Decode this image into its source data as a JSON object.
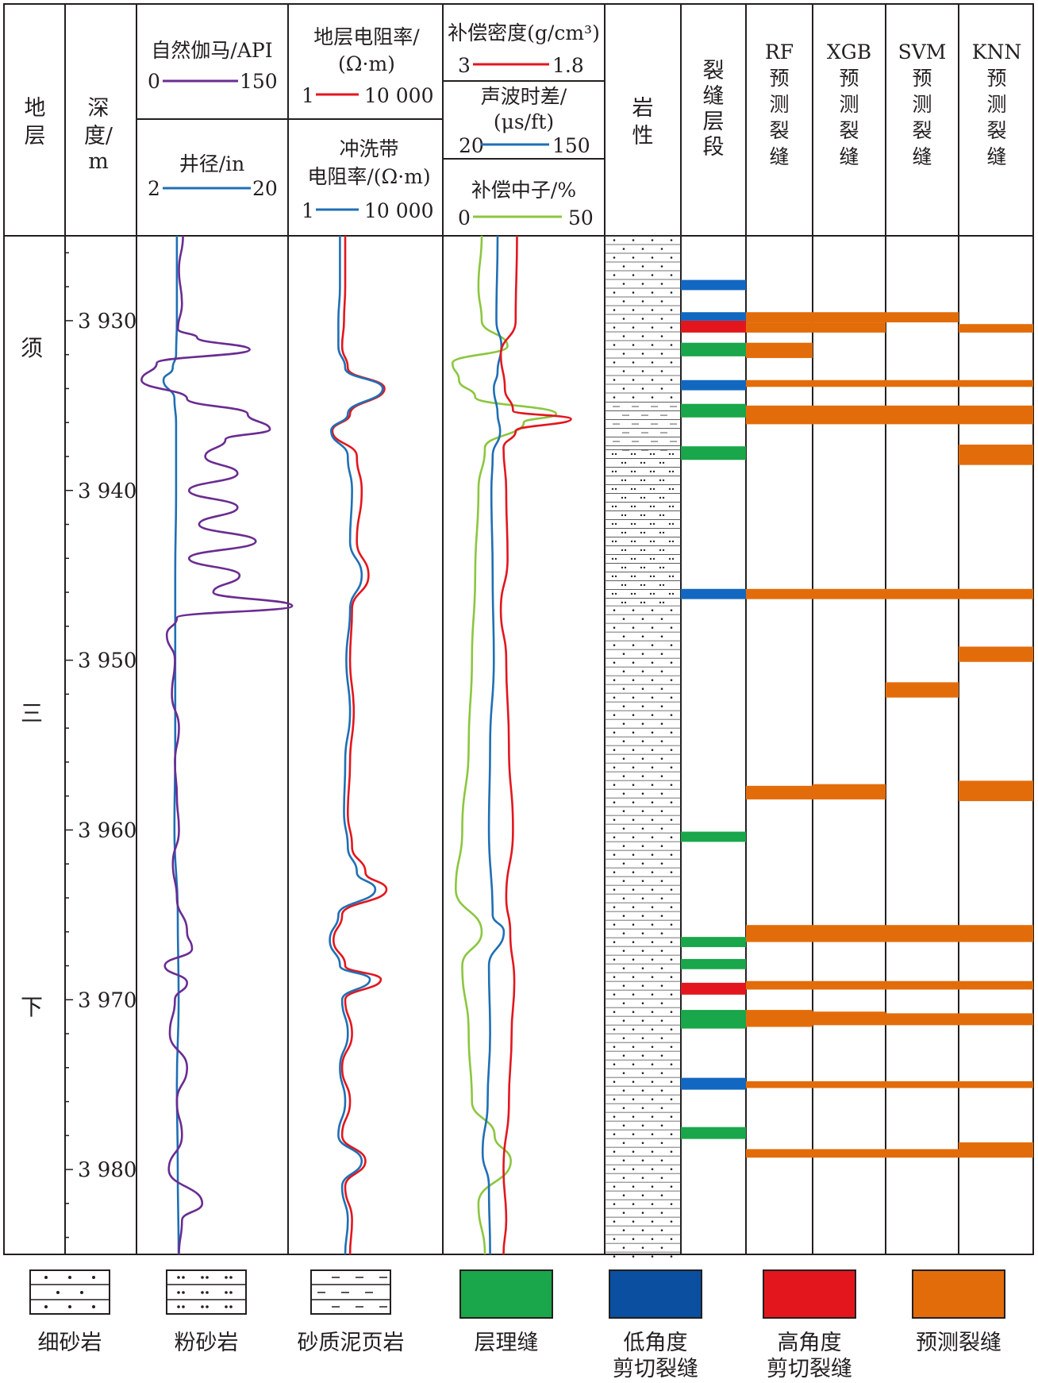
{
  "header": {
    "formation": [
      "地",
      "层"
    ],
    "depth": [
      "深",
      "度/",
      "m"
    ],
    "gr": {
      "label": "自然伽马/API",
      "min": "0",
      "max": "150"
    },
    "cal": {
      "label": "井径/in",
      "min": "2",
      "max": "20"
    },
    "rt": {
      "label1": "地层电阻率/",
      "label2": "(Ω·m)",
      "min": "1",
      "max": "10 000"
    },
    "rxo": {
      "label1": "冲洗带",
      "label2": "电阻率/(Ω·m)",
      "min": "1",
      "max": "10 000"
    },
    "den": {
      "label": "补偿密度(g/cm³)",
      "min": "3",
      "max": "1.8"
    },
    "ac": {
      "label1": "声波时差/",
      "label2": "(μs/ft)",
      "min": "20",
      "max": "150"
    },
    "cnl": {
      "label": "补偿中子/%",
      "min": "0",
      "max": "50"
    },
    "lith": [
      "岩",
      "性"
    ],
    "frac": [
      "裂",
      "缝",
      "层",
      "段"
    ],
    "pred": [
      {
        "model": "RF",
        "chars": [
          "预",
          "测",
          "裂",
          "缝"
        ]
      },
      {
        "model": "XGB",
        "chars": [
          "预",
          "测",
          "裂",
          "缝"
        ]
      },
      {
        "model": "SVM",
        "chars": [
          "预",
          "测",
          "裂",
          "缝"
        ]
      },
      {
        "model": "KNN",
        "chars": [
          "预",
          "测",
          "裂",
          "缝"
        ]
      }
    ]
  },
  "formation_chars": [
    "须",
    "三",
    "下"
  ],
  "legend": [
    {
      "label": "细砂岩",
      "pattern": "fine-sand"
    },
    {
      "label": "粉砂岩",
      "pattern": "silt"
    },
    {
      "label": "砂质泥页岩",
      "pattern": "shale"
    },
    {
      "label": "层理缝",
      "color": "#1aa64a"
    },
    {
      "label": "低角度",
      "label2": "剪切裂缝",
      "color": "#0a4fa0"
    },
    {
      "label": "高角度",
      "label2": "剪切裂缝",
      "color": "#e3161e"
    },
    {
      "label": "预测裂缝",
      "color": "#e36c0a"
    }
  ],
  "colors": {
    "gr": "#6a2c91",
    "cal": "#1f6fb5",
    "rt": "#e3161e",
    "rxo": "#1f6fb5",
    "den": "#e3161e",
    "ac": "#1f6fb5",
    "cnl": "#8cc63f",
    "bedding": "#1aa64a",
    "low_angle": "#1268c0",
    "high_angle": "#e3161e",
    "predicted": "#e36c0a"
  },
  "chart_data": {
    "type": "well-log",
    "depth_unit": "m",
    "depth_range": [
      3925,
      3985
    ],
    "depth_ticks": [
      3930,
      3940,
      3950,
      3960,
      3970,
      3980
    ],
    "depth_tick_labels": [
      "3 930",
      "3 940",
      "3 950",
      "3 960",
      "3 970",
      "3 980"
    ],
    "gr": {
      "unit": "API",
      "range": [
        0,
        150
      ],
      "depth": [
        3925,
        3927,
        3929,
        3930.5,
        3931,
        3931.7,
        3932.5,
        3933.5,
        3934.6,
        3935.5,
        3936.4,
        3937,
        3938,
        3939,
        3940,
        3941,
        3942,
        3943,
        3944,
        3945,
        3946,
        3946.8,
        3947.5,
        3948.5,
        3950,
        3952,
        3954,
        3956,
        3958,
        3960,
        3962,
        3964,
        3966,
        3967,
        3968,
        3969,
        3970,
        3972,
        3974,
        3976,
        3978,
        3980,
        3982,
        3983,
        3985
      ],
      "value": [
        46,
        42,
        45,
        41,
        60,
        112,
        20,
        5,
        50,
        110,
        132,
        88,
        68,
        100,
        52,
        100,
        62,
        118,
        52,
        102,
        76,
        154,
        40,
        30,
        38,
        35,
        42,
        38,
        40,
        42,
        36,
        40,
        50,
        55,
        28,
        50,
        38,
        33,
        50,
        40,
        45,
        32,
        65,
        45,
        42
      ]
    },
    "cal": {
      "unit": "in",
      "range": [
        2,
        20
      ],
      "depth": [
        3925,
        3930,
        3932,
        3932.8,
        3933.5,
        3934.6,
        3936,
        3940,
        3945,
        3950,
        3955,
        3960,
        3965,
        3970,
        3975,
        3980,
        3985
      ],
      "value": [
        6.8,
        6.8,
        6.7,
        6.3,
        5.2,
        6.5,
        6.7,
        6.7,
        6.6,
        6.6,
        6.6,
        6.5,
        6.9,
        7.0,
        6.8,
        6.9,
        7.0
      ]
    },
    "rt": {
      "unit": "Ω·m",
      "range": [
        1,
        10000
      ],
      "scale": "log",
      "depth": [
        3925,
        3928,
        3930,
        3931.5,
        3932.8,
        3934,
        3935.5,
        3936.5,
        3938,
        3940,
        3943,
        3945,
        3947,
        3950,
        3953,
        3956,
        3959,
        3961,
        3962.5,
        3963.5,
        3965,
        3966.5,
        3968,
        3968.8,
        3970,
        3972,
        3974,
        3976,
        3978,
        3979.5,
        3981,
        3983,
        3985
      ],
      "value": [
        30,
        30,
        28,
        25,
        35,
        310,
        40,
        14,
        60,
        80,
        60,
        120,
        45,
        40,
        50,
        40,
        35,
        45,
        100,
        350,
        25,
        15,
        30,
        250,
        30,
        45,
        25,
        40,
        25,
        100,
        30,
        45,
        40
      ]
    },
    "rxo": {
      "unit": "Ω·m",
      "range": [
        1,
        10000
      ],
      "scale": "log",
      "depth": [
        3925,
        3928,
        3930,
        3931.5,
        3932.8,
        3934,
        3935.5,
        3936.5,
        3938,
        3940,
        3943,
        3945,
        3947,
        3950,
        3953,
        3956,
        3959,
        3961,
        3962.5,
        3963.5,
        3965,
        3966.5,
        3968,
        3968.8,
        3970,
        3972,
        3974,
        3976,
        3978,
        3979.5,
        3981,
        3983,
        3985
      ],
      "value": [
        22,
        22,
        20,
        20,
        30,
        280,
        35,
        13,
        35,
        45,
        40,
        80,
        40,
        32,
        40,
        30,
        28,
        35,
        60,
        180,
        20,
        12,
        22,
        130,
        25,
        35,
        22,
        30,
        20,
        80,
        25,
        35,
        30
      ]
    },
    "den": {
      "unit": "g/cm³",
      "range": [
        3,
        1.8
      ],
      "depth": [
        3925,
        3930,
        3932,
        3934,
        3935.3,
        3935.8,
        3936.5,
        3937.5,
        3940,
        3944,
        3947,
        3950,
        3955,
        3960,
        3964,
        3966,
        3969,
        3972,
        3976,
        3980,
        3983,
        3985
      ],
      "value": [
        2.45,
        2.46,
        2.57,
        2.54,
        2.48,
        2.05,
        2.46,
        2.55,
        2.53,
        2.52,
        2.57,
        2.53,
        2.51,
        2.48,
        2.53,
        2.5,
        2.47,
        2.49,
        2.51,
        2.55,
        2.53,
        2.55
      ]
    },
    "ac": {
      "unit": "μs/ft",
      "range": [
        20,
        150
      ],
      "depth": [
        3925,
        3930,
        3931.5,
        3933,
        3934,
        3935.5,
        3936.5,
        3938,
        3940,
        3945,
        3950,
        3955,
        3960,
        3965,
        3966,
        3968,
        3972,
        3976,
        3979,
        3981,
        3985
      ],
      "value": [
        64,
        63,
        67,
        64,
        61,
        64,
        66,
        60,
        59,
        60,
        61,
        58,
        57,
        60,
        69,
        57,
        58,
        56,
        52,
        57,
        58
      ]
    },
    "cnl": {
      "unit": "%",
      "range": [
        0,
        50
      ],
      "depth": [
        3925,
        3928,
        3930,
        3931.5,
        3932.5,
        3933.5,
        3934.5,
        3935.5,
        3936,
        3937.5,
        3940,
        3945,
        3950,
        3955,
        3960,
        3963.5,
        3966,
        3968,
        3972,
        3976,
        3978,
        3979.5,
        3982,
        3985
      ],
      "value": [
        12,
        11,
        12,
        20,
        3,
        5,
        10,
        35,
        25,
        13,
        11,
        10,
        9,
        8,
        6,
        4,
        12,
        6,
        8,
        9,
        16,
        21,
        11,
        13
      ]
    },
    "lithology": [
      {
        "top": 3925,
        "base": 3934.8,
        "type": "fine-sand"
      },
      {
        "top": 3934.8,
        "base": 3937.6,
        "type": "shale"
      },
      {
        "top": 3937.6,
        "base": 3946.8,
        "type": "silt"
      },
      {
        "top": 3946.8,
        "base": 3985,
        "type": "fine-sand"
      }
    ],
    "fractures": [
      {
        "top": 3927.6,
        "base": 3928.2,
        "type": "low-angle"
      },
      {
        "top": 3929.5,
        "base": 3930.0,
        "type": "low-angle"
      },
      {
        "top": 3930.0,
        "base": 3930.7,
        "type": "high-angle"
      },
      {
        "top": 3931.3,
        "base": 3932.1,
        "type": "bedding"
      },
      {
        "top": 3933.5,
        "base": 3934.1,
        "type": "low-angle"
      },
      {
        "top": 3934.9,
        "base": 3935.7,
        "type": "bedding"
      },
      {
        "top": 3937.4,
        "base": 3938.2,
        "type": "bedding"
      },
      {
        "top": 3945.8,
        "base": 3946.4,
        "type": "low-angle"
      },
      {
        "top": 3960.1,
        "base": 3960.7,
        "type": "bedding"
      },
      {
        "top": 3966.3,
        "base": 3966.9,
        "type": "bedding"
      },
      {
        "top": 3967.6,
        "base": 3968.2,
        "type": "bedding"
      },
      {
        "top": 3969.0,
        "base": 3969.7,
        "type": "high-angle"
      },
      {
        "top": 3970.6,
        "base": 3971.7,
        "type": "bedding"
      },
      {
        "top": 3974.6,
        "base": 3975.3,
        "type": "low-angle"
      },
      {
        "top": 3977.5,
        "base": 3978.2,
        "type": "bedding"
      }
    ],
    "predictions": {
      "RF": [
        [
          3929.5,
          3930.1
        ],
        [
          3930.1,
          3930.7
        ],
        [
          3931.3,
          3932.2
        ],
        [
          3933.5,
          3933.9
        ],
        [
          3935.0,
          3936.1
        ],
        [
          3945.8,
          3946.4
        ],
        [
          3957.4,
          3958.2
        ],
        [
          3965.6,
          3966.6
        ],
        [
          3968.9,
          3969.4
        ],
        [
          3970.6,
          3971.6
        ],
        [
          3974.8,
          3975.2
        ],
        [
          3978.8,
          3979.3
        ]
      ],
      "XGB": [
        [
          3929.5,
          3930.1
        ],
        [
          3930.1,
          3930.7
        ],
        [
          3933.5,
          3933.9
        ],
        [
          3935.0,
          3936.1
        ],
        [
          3945.8,
          3946.4
        ],
        [
          3957.3,
          3958.2
        ],
        [
          3965.6,
          3966.6
        ],
        [
          3968.9,
          3969.4
        ],
        [
          3970.7,
          3971.5
        ],
        [
          3974.8,
          3975.2
        ],
        [
          3978.8,
          3979.3
        ]
      ],
      "SVM": [
        [
          3929.5,
          3930.1
        ],
        [
          3933.5,
          3933.9
        ],
        [
          3935.0,
          3936.1
        ],
        [
          3945.8,
          3946.4
        ],
        [
          3951.3,
          3952.2
        ],
        [
          3965.6,
          3966.6
        ],
        [
          3968.9,
          3969.4
        ],
        [
          3970.8,
          3971.5
        ],
        [
          3974.8,
          3975.2
        ],
        [
          3978.8,
          3979.3
        ]
      ],
      "KNN": [
        [
          3930.2,
          3930.7
        ],
        [
          3933.5,
          3933.9
        ],
        [
          3935.0,
          3936.1
        ],
        [
          3937.3,
          3938.5
        ],
        [
          3945.8,
          3946.4
        ],
        [
          3949.2,
          3950.1
        ],
        [
          3957.1,
          3958.3
        ],
        [
          3965.6,
          3966.6
        ],
        [
          3968.9,
          3969.4
        ],
        [
          3970.8,
          3971.5
        ],
        [
          3974.8,
          3975.2
        ],
        [
          3978.4,
          3979.3
        ]
      ]
    }
  }
}
